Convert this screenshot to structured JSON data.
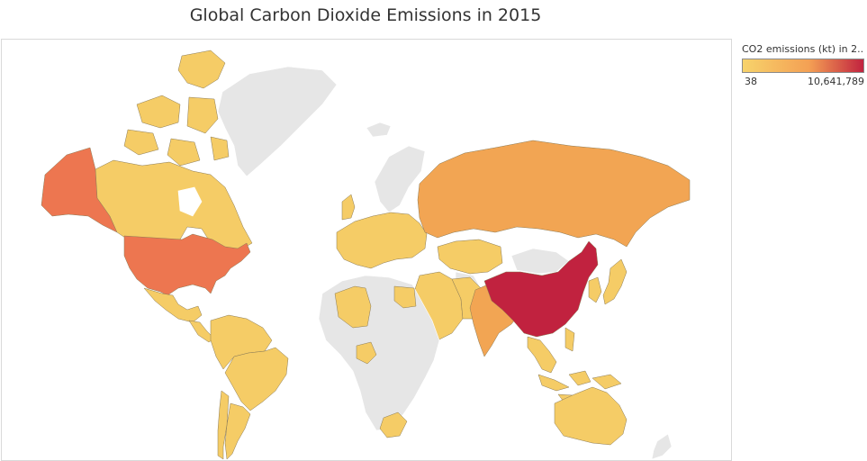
{
  "title": "Global Carbon Dioxide Emissions in 2015",
  "legend": {
    "title": "CO2 emissions (kt) in 2..",
    "min_label": "38",
    "max_label": "10,641,789",
    "color_low": "#f7d36b",
    "color_mid": "#f4a054",
    "color_high": "#c1223f"
  },
  "colors": {
    "no_data": "#e6e6e6",
    "low": "#f5cc66",
    "low_mid": "#f4b65d",
    "mid": "#f2a553",
    "high_mid": "#ed7650",
    "high": "#c1223f"
  },
  "regions": [
    {
      "name": "United States",
      "level": "high_mid"
    },
    {
      "name": "Alaska",
      "level": "high_mid"
    },
    {
      "name": "Canada",
      "level": "low"
    },
    {
      "name": "Canadian Arctic Islands",
      "level": "low"
    },
    {
      "name": "Greenland",
      "level": "no_data"
    },
    {
      "name": "Mexico",
      "level": "low"
    },
    {
      "name": "Central America",
      "level": "low"
    },
    {
      "name": "South America North",
      "level": "low"
    },
    {
      "name": "Brazil",
      "level": "low"
    },
    {
      "name": "Argentina",
      "level": "low"
    },
    {
      "name": "Chile",
      "level": "low"
    },
    {
      "name": "Europe",
      "level": "low"
    },
    {
      "name": "Scandinavia",
      "level": "no_data"
    },
    {
      "name": "Russia",
      "level": "mid"
    },
    {
      "name": "Kazakhstan",
      "level": "low"
    },
    {
      "name": "Middle East",
      "level": "low"
    },
    {
      "name": "Iran",
      "level": "low"
    },
    {
      "name": "Central Asia",
      "level": "no_data"
    },
    {
      "name": "India",
      "level": "mid"
    },
    {
      "name": "China",
      "level": "high"
    },
    {
      "name": "Mongolia",
      "level": "no_data"
    },
    {
      "name": "Southeast Asia",
      "level": "low"
    },
    {
      "name": "Indonesia",
      "level": "low"
    },
    {
      "name": "Japan",
      "level": "low"
    },
    {
      "name": "Korea",
      "level": "low"
    },
    {
      "name": "Australia",
      "level": "low"
    },
    {
      "name": "New Zealand",
      "level": "no_data"
    },
    {
      "name": "Algeria",
      "level": "low"
    },
    {
      "name": "Egypt",
      "level": "low"
    },
    {
      "name": "Africa",
      "level": "no_data"
    },
    {
      "name": "Nigeria",
      "level": "low"
    },
    {
      "name": "South Africa",
      "level": "low"
    },
    {
      "name": "Iceland",
      "level": "no_data"
    },
    {
      "name": "UK",
      "level": "low"
    }
  ]
}
